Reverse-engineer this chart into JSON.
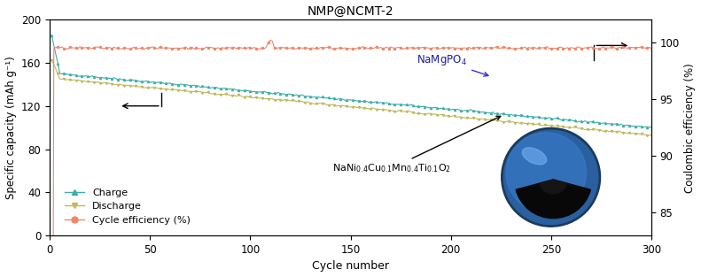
{
  "title": "NMP@NCMT-2",
  "xlabel": "Cycle number",
  "ylabel_left": "Specific capacity (mAh g⁻¹)",
  "ylabel_right": "Coulombic efficiency (%)",
  "xlim": [
    0,
    300
  ],
  "ylim_left": [
    0,
    200
  ],
  "ylim_right": [
    83,
    102
  ],
  "yticks_left": [
    0,
    40,
    80,
    120,
    160,
    200
  ],
  "yticks_right": [
    85,
    90,
    95,
    100
  ],
  "xticks": [
    0,
    50,
    100,
    150,
    200,
    250,
    300
  ],
  "charge_color": "#3aafa9",
  "discharge_color": "#bfba5a",
  "efficiency_color": "#f0876a",
  "n_cycles": 300,
  "legend_charge": "Charge",
  "legend_discharge": "Discharge",
  "legend_efficiency": "Cycle efficiency (%)",
  "bg_color": "#ffffff",
  "sphere_outer_color": "#3a6fbd",
  "sphere_mid_color": "#5a9fd4",
  "sphere_highlight_color": "#8dc4f0",
  "sphere_dark_color": "#080808"
}
